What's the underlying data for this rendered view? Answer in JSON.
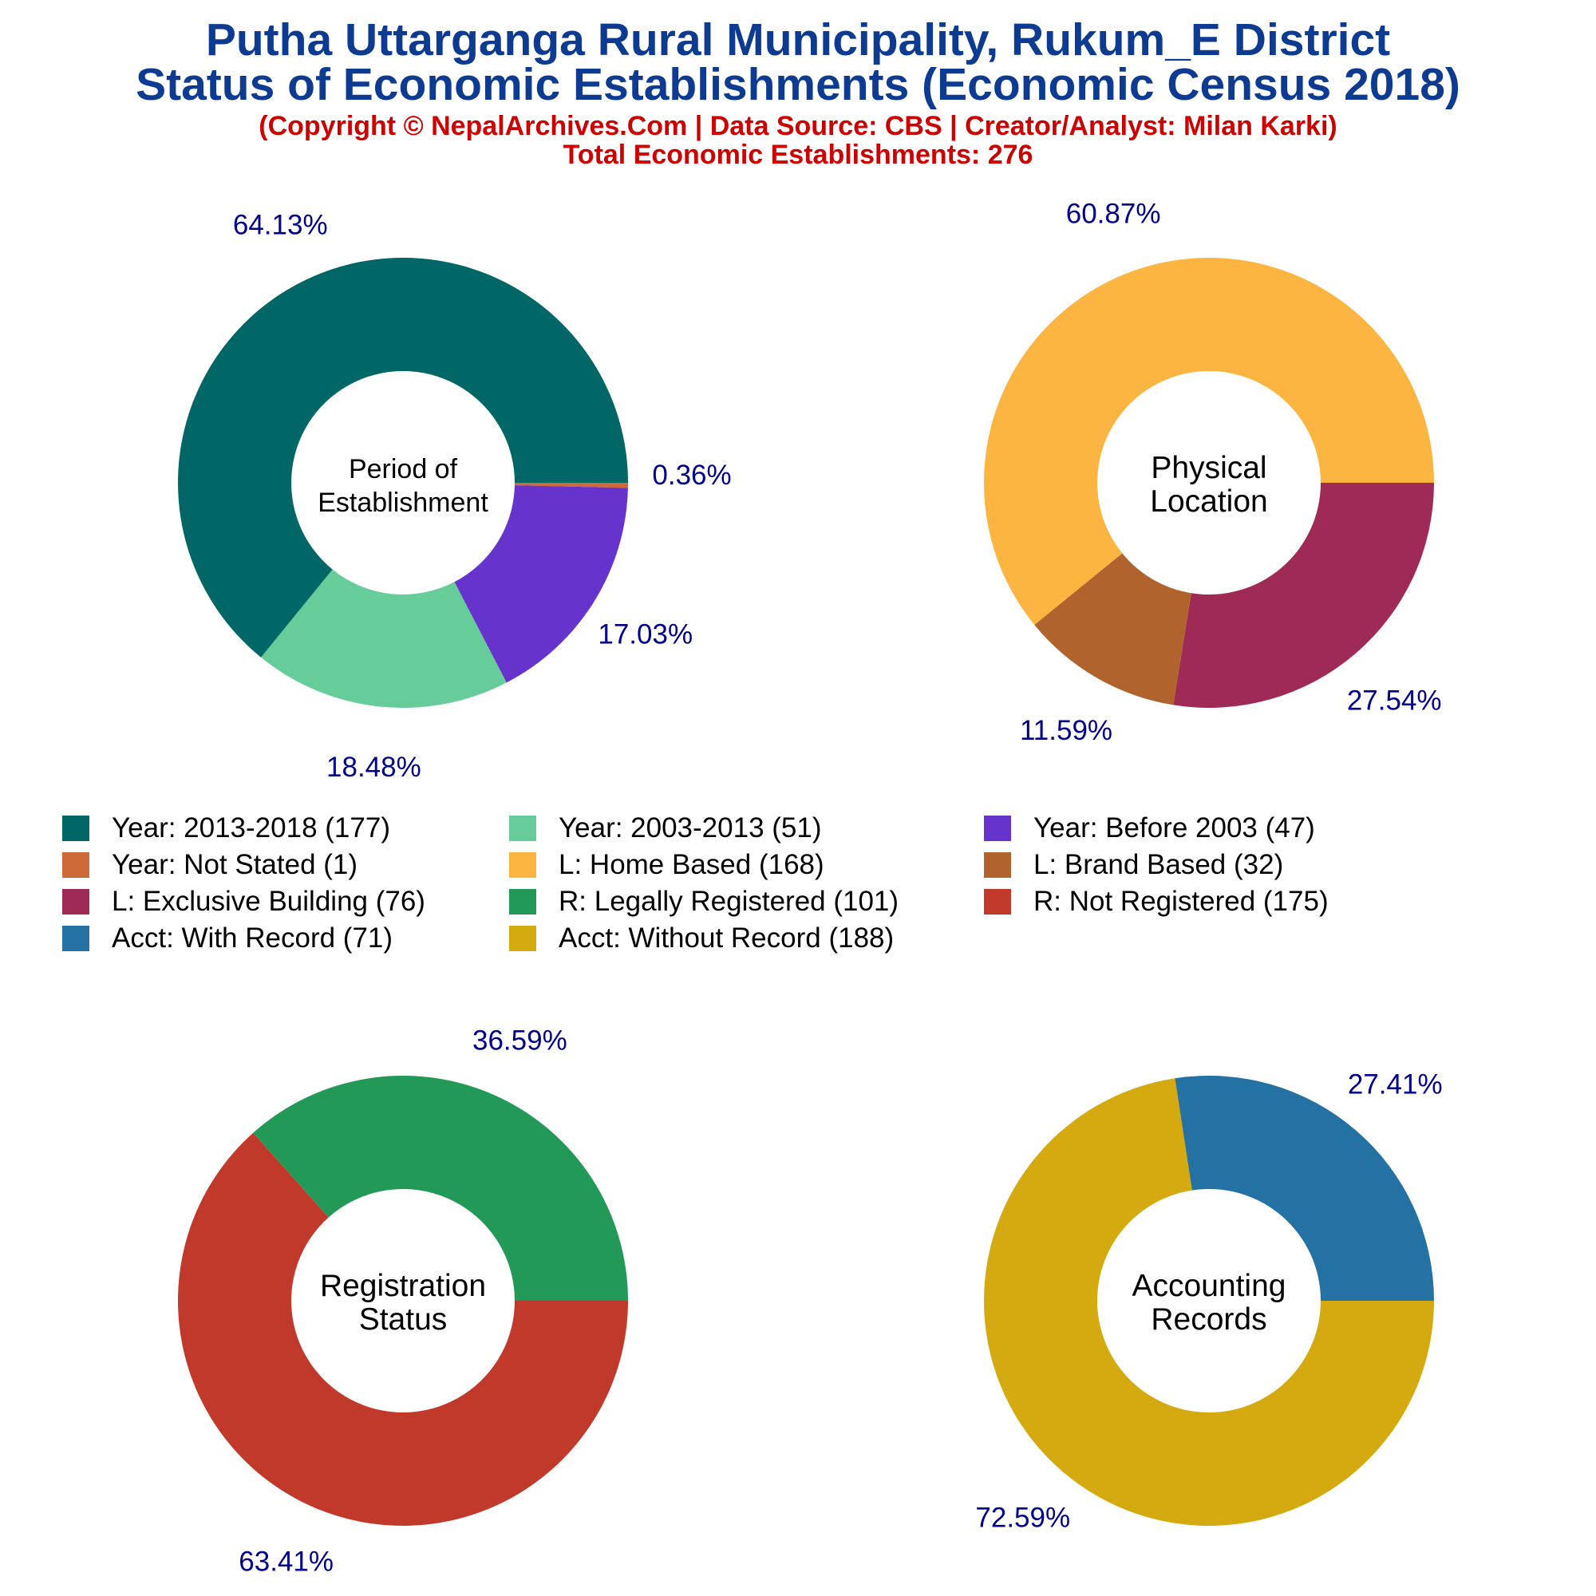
{
  "header": {
    "title_line1": "Putha Uttarganga Rural Municipality, Rukum_E District",
    "title_line2": "Status of Economic Establishments (Economic Census 2018)",
    "copyright": "(Copyright © NepalArchives.Com | Data Source: CBS | Creator/Analyst: Milan Karki)",
    "total": "Total Economic Establishments: 276"
  },
  "colors": {
    "title": "#0d3b91",
    "subtitle": "#cc0000",
    "percent_label": "#00008b"
  },
  "chart_data": [
    {
      "type": "pie",
      "style": "donut",
      "center_label": [
        "Period of",
        "Establishment"
      ],
      "start_angle_deg": 0,
      "direction": "clockwise",
      "slices": [
        {
          "label": "Year: Not Stated",
          "value": 1,
          "percent": "0.36%",
          "color": "#cd6a37"
        },
        {
          "label": "Year: Before 2003",
          "value": 47,
          "percent": "17.03%",
          "color": "#6633cc"
        },
        {
          "label": "Year: 2003-2013",
          "value": 51,
          "percent": "18.48%",
          "color": "#66cc99"
        },
        {
          "label": "Year: 2013-2018",
          "value": 177,
          "percent": "64.13%",
          "color": "#006666"
        }
      ]
    },
    {
      "type": "pie",
      "style": "donut",
      "center_label": [
        "Physical",
        "Location"
      ],
      "start_angle_deg": 0,
      "direction": "clockwise",
      "slices": [
        {
          "label": "L: Exclusive Building",
          "value": 76,
          "percent": "27.54%",
          "color": "#9e2a55"
        },
        {
          "label": "L: Brand Based",
          "value": 32,
          "percent": "11.59%",
          "color": "#b0632c"
        },
        {
          "label": "L: Home Based",
          "value": 168,
          "percent": "60.87%",
          "color": "#fdb541"
        }
      ]
    },
    {
      "type": "pie",
      "style": "donut",
      "center_label": [
        "Registration",
        "Status"
      ],
      "start_angle_deg": 0,
      "direction": "clockwise",
      "slices": [
        {
          "label": "R: Not Registered",
          "value": 175,
          "percent": "63.41%",
          "color": "#c0392b"
        },
        {
          "label": "R: Legally Registered",
          "value": 101,
          "percent": "36.59%",
          "color": "#239957"
        }
      ]
    },
    {
      "type": "pie",
      "style": "donut",
      "center_label": [
        "Accounting",
        "Records"
      ],
      "start_angle_deg": 0,
      "direction": "clockwise",
      "slices": [
        {
          "label": "Acct: Without Record",
          "value": 188,
          "percent": "72.59%",
          "color": "#d4aa10"
        },
        {
          "label": "Acct: With Record",
          "value": 71,
          "percent": "27.41%",
          "color": "#2471a3"
        }
      ]
    }
  ],
  "legend": {
    "items": [
      {
        "label": "Year: 2013-2018 (177)",
        "color": "#006666"
      },
      {
        "label": "Year: 2003-2013 (51)",
        "color": "#66cc99"
      },
      {
        "label": "Year: Before 2003 (47)",
        "color": "#6633cc"
      },
      {
        "label": "Year: Not Stated (1)",
        "color": "#cd6a37"
      },
      {
        "label": "L: Home Based (168)",
        "color": "#fdb541"
      },
      {
        "label": "L: Brand Based (32)",
        "color": "#b0632c"
      },
      {
        "label": "L: Exclusive Building (76)",
        "color": "#9e2a55"
      },
      {
        "label": "R: Legally Registered (101)",
        "color": "#239957"
      },
      {
        "label": "R: Not Registered (175)",
        "color": "#c0392b"
      },
      {
        "label": "Acct: With Record (71)",
        "color": "#2471a3"
      },
      {
        "label": "Acct: Without Record (188)",
        "color": "#d4aa10"
      }
    ]
  }
}
